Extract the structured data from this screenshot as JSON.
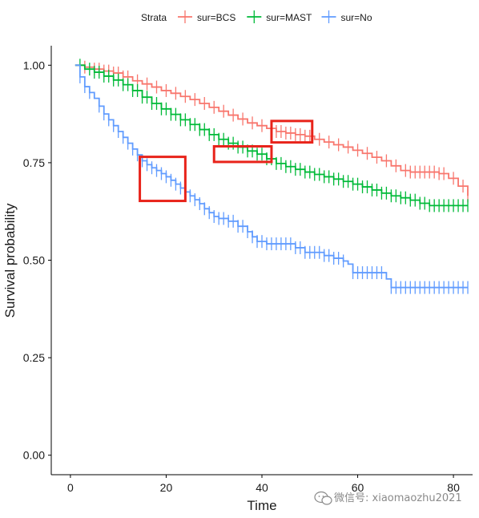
{
  "chart_data": {
    "type": "line",
    "subtype": "kaplan-meier-step",
    "xlabel": "Time",
    "ylabel": "Survival probability",
    "xlim": [
      -4,
      84
    ],
    "ylim": [
      -0.05,
      1.05
    ],
    "x_ticks": [
      0,
      20,
      40,
      60,
      80
    ],
    "x_tick_labels": [
      "0",
      "20",
      "40",
      "60",
      "80"
    ],
    "y_ticks": [
      0,
      0.25,
      0.5,
      0.75,
      1
    ],
    "y_tick_labels": [
      "0.00",
      "0.25",
      "0.50",
      "0.75",
      "1.00"
    ],
    "grid": false,
    "legend_position": "top",
    "legend_title": "Strata",
    "series": [
      {
        "name": "sur=BCS",
        "color": "#F8766D",
        "points": [
          [
            1,
            1.0
          ],
          [
            3,
            0.995
          ],
          [
            5,
            0.99
          ],
          [
            7,
            0.985
          ],
          [
            9,
            0.98
          ],
          [
            11,
            0.97
          ],
          [
            13,
            0.96
          ],
          [
            15,
            0.952
          ],
          [
            17,
            0.944
          ],
          [
            19,
            0.935
          ],
          [
            21,
            0.928
          ],
          [
            23,
            0.92
          ],
          [
            25,
            0.912
          ],
          [
            27,
            0.902
          ],
          [
            29,
            0.892
          ],
          [
            31,
            0.882
          ],
          [
            33,
            0.872
          ],
          [
            35,
            0.862
          ],
          [
            37,
            0.852
          ],
          [
            39,
            0.845
          ],
          [
            41,
            0.838
          ],
          [
            43,
            0.83
          ],
          [
            45,
            0.826
          ],
          [
            47,
            0.822
          ],
          [
            49,
            0.818
          ],
          [
            51,
            0.81
          ],
          [
            53,
            0.803
          ],
          [
            55,
            0.796
          ],
          [
            57,
            0.79
          ],
          [
            59,
            0.782
          ],
          [
            61,
            0.774
          ],
          [
            63,
            0.764
          ],
          [
            65,
            0.755
          ],
          [
            67,
            0.742
          ],
          [
            69,
            0.73
          ],
          [
            71,
            0.726
          ],
          [
            73,
            0.726
          ],
          [
            75,
            0.726
          ],
          [
            77,
            0.722
          ],
          [
            79,
            0.71
          ],
          [
            81,
            0.69
          ],
          [
            83,
            0.665
          ]
        ],
        "censor_x": [
          3,
          5,
          6,
          7,
          8,
          9,
          10,
          11,
          12,
          14,
          16,
          18,
          20,
          22,
          24,
          26,
          28,
          30,
          32,
          34,
          36,
          38,
          40,
          42,
          43,
          44,
          45,
          46,
          47,
          48,
          49,
          50,
          52,
          54,
          56,
          58,
          60,
          62,
          64,
          66,
          68,
          70,
          71,
          72,
          73,
          74,
          75,
          76,
          77,
          78,
          80,
          82,
          83
        ]
      },
      {
        "name": "sur=MAST",
        "color": "#00BA38",
        "points": [
          [
            1,
            1.0
          ],
          [
            3,
            0.99
          ],
          [
            5,
            0.982
          ],
          [
            7,
            0.972
          ],
          [
            9,
            0.962
          ],
          [
            11,
            0.95
          ],
          [
            13,
            0.935
          ],
          [
            15,
            0.918
          ],
          [
            17,
            0.902
          ],
          [
            19,
            0.888
          ],
          [
            21,
            0.874
          ],
          [
            23,
            0.86
          ],
          [
            25,
            0.848
          ],
          [
            27,
            0.835
          ],
          [
            29,
            0.822
          ],
          [
            31,
            0.81
          ],
          [
            33,
            0.8
          ],
          [
            35,
            0.79
          ],
          [
            37,
            0.78
          ],
          [
            39,
            0.772
          ],
          [
            41,
            0.76
          ],
          [
            43,
            0.748
          ],
          [
            45,
            0.74
          ],
          [
            47,
            0.733
          ],
          [
            49,
            0.726
          ],
          [
            51,
            0.72
          ],
          [
            53,
            0.714
          ],
          [
            55,
            0.708
          ],
          [
            57,
            0.702
          ],
          [
            59,
            0.695
          ],
          [
            61,
            0.688
          ],
          [
            63,
            0.68
          ],
          [
            65,
            0.672
          ],
          [
            67,
            0.665
          ],
          [
            69,
            0.66
          ],
          [
            71,
            0.654
          ],
          [
            73,
            0.646
          ],
          [
            75,
            0.64
          ],
          [
            77,
            0.64
          ],
          [
            79,
            0.64
          ],
          [
            81,
            0.64
          ],
          [
            83,
            0.64
          ]
        ],
        "censor_x": [
          2,
          4,
          5,
          6,
          7,
          8,
          9,
          10,
          11,
          12,
          13,
          14,
          15,
          16,
          17,
          18,
          19,
          20,
          21,
          22,
          23,
          24,
          25,
          26,
          27,
          28,
          29,
          30,
          31,
          32,
          33,
          34,
          35,
          36,
          37,
          38,
          39,
          40,
          41,
          42,
          43,
          44,
          45,
          46,
          47,
          48,
          49,
          50,
          51,
          52,
          53,
          54,
          55,
          56,
          57,
          58,
          59,
          60,
          61,
          62,
          63,
          64,
          65,
          66,
          67,
          68,
          69,
          70,
          71,
          72,
          73,
          74,
          75,
          76,
          77,
          78,
          79,
          80,
          81,
          82,
          83
        ]
      },
      {
        "name": "sur=No",
        "color": "#619CFF",
        "points": [
          [
            1,
            1.0
          ],
          [
            2,
            0.97
          ],
          [
            3,
            0.945
          ],
          [
            4,
            0.93
          ],
          [
            5,
            0.915
          ],
          [
            6,
            0.895
          ],
          [
            7,
            0.875
          ],
          [
            8,
            0.86
          ],
          [
            9,
            0.845
          ],
          [
            10,
            0.83
          ],
          [
            11,
            0.815
          ],
          [
            12,
            0.8
          ],
          [
            13,
            0.785
          ],
          [
            14,
            0.77
          ],
          [
            15,
            0.755
          ],
          [
            16,
            0.745
          ],
          [
            17,
            0.737
          ],
          [
            18,
            0.73
          ],
          [
            19,
            0.722
          ],
          [
            20,
            0.714
          ],
          [
            21,
            0.705
          ],
          [
            22,
            0.695
          ],
          [
            23,
            0.685
          ],
          [
            24,
            0.675
          ],
          [
            25,
            0.665
          ],
          [
            26,
            0.655
          ],
          [
            27,
            0.645
          ],
          [
            28,
            0.632
          ],
          [
            29,
            0.622
          ],
          [
            30,
            0.612
          ],
          [
            31,
            0.607
          ],
          [
            33,
            0.6
          ],
          [
            35,
            0.587
          ],
          [
            37,
            0.573
          ],
          [
            38,
            0.56
          ],
          [
            39,
            0.548
          ],
          [
            41,
            0.542
          ],
          [
            43,
            0.542
          ],
          [
            45,
            0.542
          ],
          [
            47,
            0.532
          ],
          [
            49,
            0.52
          ],
          [
            51,
            0.52
          ],
          [
            53,
            0.512
          ],
          [
            55,
            0.505
          ],
          [
            57,
            0.498
          ],
          [
            58,
            0.49
          ],
          [
            59,
            0.468
          ],
          [
            62,
            0.468
          ],
          [
            64,
            0.468
          ],
          [
            66,
            0.452
          ],
          [
            67,
            0.43
          ],
          [
            70,
            0.43
          ],
          [
            75,
            0.43
          ],
          [
            80,
            0.43
          ],
          [
            83,
            0.43
          ]
        ],
        "censor_x": [
          2,
          3,
          4,
          6,
          7,
          8,
          9,
          10,
          11,
          12,
          13,
          14,
          15,
          16,
          17,
          18,
          19,
          20,
          21,
          22,
          23,
          24,
          25,
          26,
          27,
          28,
          29,
          30,
          31,
          32,
          33,
          34,
          35,
          36,
          37,
          38,
          39,
          40,
          41,
          42,
          43,
          44,
          45,
          46,
          47,
          48,
          49,
          50,
          51,
          52,
          53,
          54,
          55,
          56,
          57,
          59,
          60,
          61,
          62,
          63,
          64,
          65,
          67,
          68,
          69,
          70,
          71,
          72,
          73,
          74,
          75,
          76,
          77,
          78,
          79,
          80,
          81,
          82,
          83
        ]
      }
    ],
    "annotation_boxes": [
      {
        "x0": 14.5,
        "x1": 24,
        "y0": 0.652,
        "y1": 0.765,
        "color": "#E8231A"
      },
      {
        "x0": 30,
        "x1": 42,
        "y0": 0.752,
        "y1": 0.792,
        "color": "#E8231A"
      },
      {
        "x0": 42,
        "x1": 50.5,
        "y0": 0.802,
        "y1": 0.857,
        "color": "#E8231A"
      }
    ]
  },
  "watermark": {
    "text": "微信号: xiaomaozhu2021",
    "icon": "wechat-icon"
  }
}
